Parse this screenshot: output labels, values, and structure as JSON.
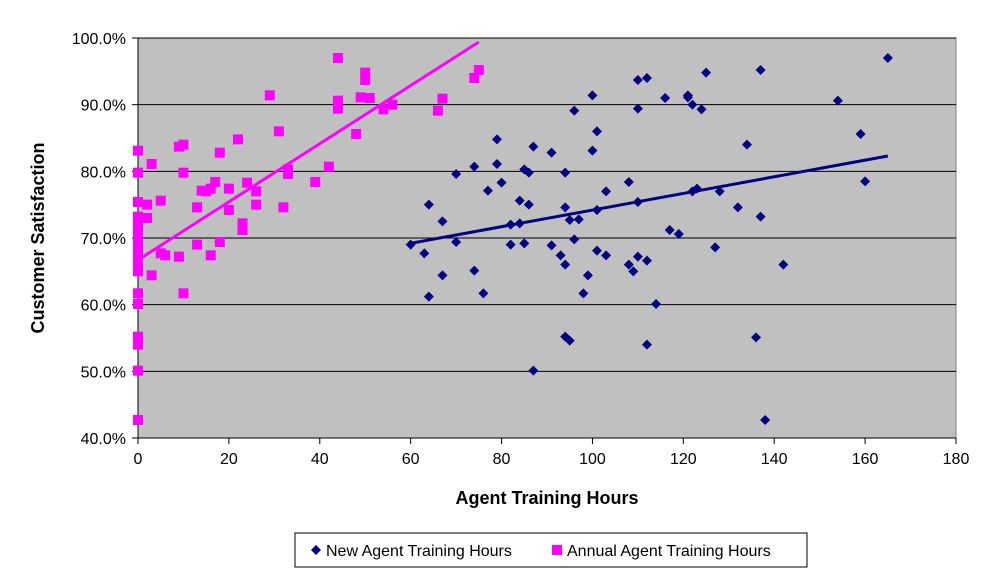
{
  "chart_data": {
    "type": "scatter",
    "xlabel": "Agent Training Hours",
    "ylabel": "Customer Satisfaction",
    "xlim": [
      0,
      180
    ],
    "ylim": [
      40,
      100
    ],
    "x_ticks": [
      0,
      20,
      40,
      60,
      80,
      100,
      120,
      140,
      160,
      180
    ],
    "y_ticks": [
      40,
      50,
      60,
      70,
      80,
      90,
      100
    ],
    "x_tick_labels": [
      "0",
      "20",
      "40",
      "60",
      "80",
      "100",
      "120",
      "140",
      "160",
      "180"
    ],
    "y_tick_labels": [
      "40.0%",
      "50.0%",
      "60.0%",
      "70.0%",
      "80.0%",
      "90.0%",
      "100.0%"
    ],
    "grid": "horizontal",
    "plot_background": "#c0c0c0",
    "legend_position": "bottom",
    "series": [
      {
        "name": "New Agent Training Hours",
        "marker": "diamond",
        "color": "#000080",
        "points": [
          [
            60,
            69
          ],
          [
            63,
            67.7
          ],
          [
            64,
            61.2
          ],
          [
            64,
            75
          ],
          [
            67,
            64.4
          ],
          [
            67,
            72.5
          ],
          [
            70,
            69.4
          ],
          [
            70,
            79.6
          ],
          [
            74,
            65.1
          ],
          [
            74,
            80.7
          ],
          [
            76,
            61.7
          ],
          [
            77,
            77.1
          ],
          [
            79,
            84.8
          ],
          [
            79,
            81.1
          ],
          [
            80,
            78.3
          ],
          [
            82,
            72
          ],
          [
            82,
            69
          ],
          [
            84,
            75.6
          ],
          [
            84,
            72.2
          ],
          [
            85,
            69.2
          ],
          [
            85,
            80.3
          ],
          [
            86,
            75
          ],
          [
            86,
            79.8
          ],
          [
            87,
            83.7
          ],
          [
            87,
            50.1
          ],
          [
            91,
            82.8
          ],
          [
            91,
            68.9
          ],
          [
            93,
            67.4
          ],
          [
            94,
            74.6
          ],
          [
            94,
            79.8
          ],
          [
            94,
            66
          ],
          [
            94,
            55.2
          ],
          [
            95,
            54.6
          ],
          [
            95,
            72.7
          ],
          [
            96,
            69.8
          ],
          [
            96,
            89.1
          ],
          [
            97,
            72.8
          ],
          [
            98,
            61.7
          ],
          [
            99,
            64.4
          ],
          [
            100,
            91.4
          ],
          [
            100,
            83.1
          ],
          [
            101,
            68.1
          ],
          [
            101,
            74.2
          ],
          [
            101,
            86
          ],
          [
            103,
            67.4
          ],
          [
            103,
            77
          ],
          [
            108,
            66
          ],
          [
            108,
            78.4
          ],
          [
            109,
            65
          ],
          [
            110,
            75.4
          ],
          [
            110,
            67.2
          ],
          [
            110,
            89.4
          ],
          [
            110,
            93.7
          ],
          [
            112,
            94
          ],
          [
            112,
            66.6
          ],
          [
            112,
            54
          ],
          [
            114,
            60.1
          ],
          [
            116,
            91
          ],
          [
            117,
            71.2
          ],
          [
            119,
            70.6
          ],
          [
            121,
            91.1
          ],
          [
            121,
            91.4
          ],
          [
            122,
            77
          ],
          [
            122,
            90
          ],
          [
            123,
            77.4
          ],
          [
            124,
            89.3
          ],
          [
            125,
            94.8
          ],
          [
            127,
            68.6
          ],
          [
            128,
            77
          ],
          [
            132,
            74.6
          ],
          [
            134,
            84
          ],
          [
            136,
            55.1
          ],
          [
            137,
            95.2
          ],
          [
            137,
            73.2
          ],
          [
            138,
            42.7
          ],
          [
            142,
            66
          ],
          [
            154,
            90.6
          ],
          [
            159,
            85.6
          ],
          [
            160,
            78.5
          ],
          [
            165,
            97
          ]
        ],
        "trendline": [
          [
            60,
            69.2
          ],
          [
            165,
            82.3
          ]
        ]
      },
      {
        "name": "Annual Agent Training Hours",
        "marker": "square",
        "color": "#ff00ff",
        "points": [
          [
            0,
            42.7
          ],
          [
            0,
            50.1
          ],
          [
            0,
            54
          ],
          [
            0,
            54.6
          ],
          [
            0,
            55.2
          ],
          [
            0,
            60.1
          ],
          [
            0,
            61.7
          ],
          [
            0,
            65
          ],
          [
            0,
            66
          ],
          [
            0,
            66.6
          ],
          [
            0,
            67.4
          ],
          [
            0,
            68.1
          ],
          [
            0,
            69
          ],
          [
            0,
            69.8
          ],
          [
            0,
            71.2
          ],
          [
            0,
            72.5
          ],
          [
            0,
            73.2
          ],
          [
            0,
            75.4
          ],
          [
            0,
            79.8
          ],
          [
            0,
            83.1
          ],
          [
            2,
            73
          ],
          [
            2,
            75
          ],
          [
            3,
            81.1
          ],
          [
            3,
            64.4
          ],
          [
            5,
            75.6
          ],
          [
            5,
            67.7
          ],
          [
            6,
            67.4
          ],
          [
            9,
            67.2
          ],
          [
            9,
            83.7
          ],
          [
            10,
            84
          ],
          [
            10,
            79.8
          ],
          [
            10,
            61.7
          ],
          [
            13,
            69
          ],
          [
            13,
            74.6
          ],
          [
            14,
            77.1
          ],
          [
            15,
            77
          ],
          [
            16,
            67.4
          ],
          [
            16,
            77.4
          ],
          [
            17,
            78.4
          ],
          [
            18,
            69.4
          ],
          [
            18,
            82.8
          ],
          [
            20,
            74.2
          ],
          [
            20,
            77.4
          ],
          [
            22,
            84.8
          ],
          [
            23,
            71.2
          ],
          [
            23,
            72.2
          ],
          [
            24,
            78.3
          ],
          [
            26,
            77
          ],
          [
            26,
            75
          ],
          [
            29,
            91.4
          ],
          [
            31,
            86
          ],
          [
            32,
            74.6
          ],
          [
            33,
            80.3
          ],
          [
            33,
            79.6
          ],
          [
            39,
            78.4
          ],
          [
            42,
            80.7
          ],
          [
            44,
            89.4
          ],
          [
            44,
            90.6
          ],
          [
            44,
            97
          ],
          [
            48,
            85.6
          ],
          [
            49,
            91.1
          ],
          [
            50,
            94.8
          ],
          [
            50,
            93.7
          ],
          [
            51,
            91
          ],
          [
            54,
            89.3
          ],
          [
            56,
            90
          ],
          [
            66,
            89.1
          ],
          [
            67,
            90.9
          ],
          [
            74,
            94
          ],
          [
            75,
            95.2
          ]
        ],
        "trendline": [
          [
            0,
            66.7
          ],
          [
            75,
            99.4
          ]
        ]
      }
    ]
  }
}
